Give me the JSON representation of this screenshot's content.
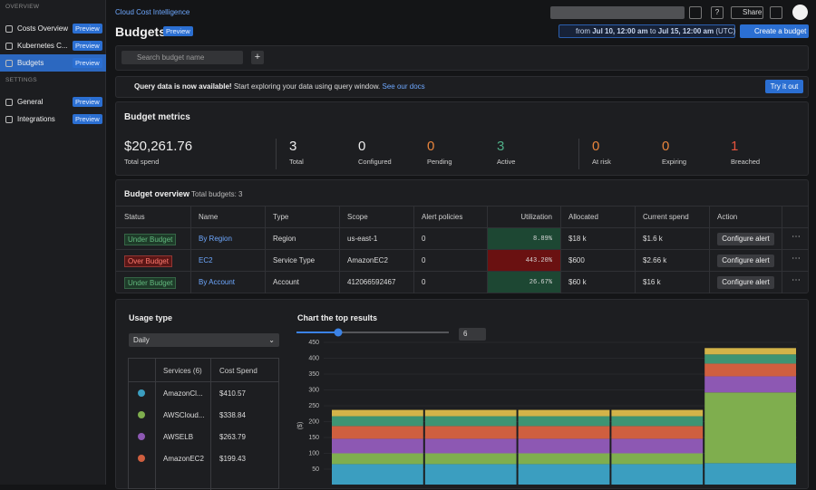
{
  "sidebar": {
    "sections": [
      {
        "title": "OVERVIEW",
        "items": [
          {
            "label": "Costs Overview",
            "badge": "Preview"
          },
          {
            "label": "Kubernetes C...",
            "badge": "Preview"
          },
          {
            "label": "Budgets",
            "badge": "Preview",
            "active": true
          }
        ]
      },
      {
        "title": "SETTINGS",
        "items": [
          {
            "label": "General",
            "badge": "Preview"
          },
          {
            "label": "Integrations",
            "badge": "Preview"
          }
        ]
      }
    ]
  },
  "header": {
    "breadcrumb": "Cloud Cost Intelligence",
    "title": "Budgets",
    "badge": "Preview",
    "share": "Share",
    "date_range": {
      "from_word": "from",
      "start": "Jul 10, 12:00 am",
      "to_word": "to",
      "end": "Jul 15, 12:00 am",
      "tz": "(UTC)"
    },
    "create_button": "Create a budget"
  },
  "search": {
    "placeholder": "Search budget name"
  },
  "banner": {
    "headline": "Query data is now available!",
    "text": "Start exploring your data using query window.",
    "link": "See our docs",
    "button": "Try it out"
  },
  "metrics": {
    "title": "Budget metrics",
    "items": [
      {
        "value": "$20,261.76",
        "label": "Total spend",
        "color": "#ececec"
      },
      {
        "value": 3,
        "label": "Total",
        "color": "#ececec"
      },
      {
        "value": 0,
        "label": "Configured",
        "color": "#ececec"
      },
      {
        "value": 0,
        "label": "Pending",
        "color": "#e8843c"
      },
      {
        "value": 3,
        "label": "Active",
        "color": "#4fae87"
      },
      {
        "value": 0,
        "label": "At risk",
        "color": "#e8843c"
      },
      {
        "value": 0,
        "label": "Expiring",
        "color": "#e8843c"
      },
      {
        "value": 1,
        "label": "Breached",
        "color": "#e5533d"
      }
    ]
  },
  "overview": {
    "title": "Budget overview",
    "subtitle": "Total budgets: 3",
    "columns": [
      "Status",
      "Name",
      "Type",
      "Scope",
      "Alert policies",
      "Utilization",
      "Allocated",
      "Current spend",
      "Action"
    ],
    "rows": [
      {
        "status": "Under Budget",
        "status_color": "#62b97e",
        "status_background": "#1e3b29",
        "name": "By Region",
        "type": "Region",
        "scope": "us-east-1",
        "alert_policies": 0,
        "utilization": "8.89%",
        "utilization_background": "#1d4733",
        "allocated": "$18 k",
        "current_spend": "$1.6 k",
        "action": "Configure alert"
      },
      {
        "status": "Over Budget",
        "status_color": "#ff7a6e",
        "status_background": "#5a1616",
        "name": "EC2",
        "type": "Service Type",
        "scope": "AmazonEC2",
        "alert_policies": 0,
        "utilization": "443.20%",
        "utilization_background": "#6a1111",
        "allocated": "$600",
        "current_spend": "$2.66 k",
        "action": "Configure alert"
      },
      {
        "status": "Under Budget",
        "status_color": "#62b97e",
        "status_background": "#1e3b29",
        "name": "By Account",
        "type": "Account",
        "scope": "412066592467",
        "alert_policies": 0,
        "utilization": "26.67%",
        "utilization_background": "#1d4733",
        "allocated": "$60 k",
        "current_spend": "$16 k",
        "action": "Configure alert"
      }
    ]
  },
  "usage": {
    "title": "Usage type",
    "select": "Daily",
    "columns": [
      "Services (6)",
      "Cost Spend"
    ],
    "costs": [
      "$410.57",
      "$338.84",
      "$263.79",
      "$199.43"
    ]
  },
  "chart_data": {
    "type": "bar",
    "stacked": true,
    "title": "Chart the top results",
    "slider_value": 6,
    "y_label": "($)",
    "categories": [
      null,
      null,
      null,
      null,
      null
    ],
    "ylim": [
      0,
      450
    ],
    "yticks": [
      50,
      100,
      150,
      200,
      250,
      300,
      350,
      400,
      450
    ],
    "grid": true,
    "series": [
      {
        "name": "AmazonCl...",
        "color": "#3b9ec0",
        "values": [
          66,
          66,
          66,
          66,
          69
        ]
      },
      {
        "name": "AWSCloud...",
        "color": "#7fae4e",
        "values": [
          34,
          34,
          34,
          34,
          223
        ]
      },
      {
        "name": "AWSELB",
        "color": "#8d58b3",
        "values": [
          46,
          46,
          46,
          46,
          51
        ]
      },
      {
        "name": "AmazonEC2",
        "color": "#cf5f3f",
        "values": [
          40,
          40,
          40,
          40,
          40
        ]
      },
      {
        "color": "#3e9473",
        "values": [
          31,
          31,
          31,
          31,
          29
        ]
      },
      {
        "color": "#d3b349",
        "values": [
          20,
          20,
          20,
          20,
          20
        ]
      }
    ]
  }
}
